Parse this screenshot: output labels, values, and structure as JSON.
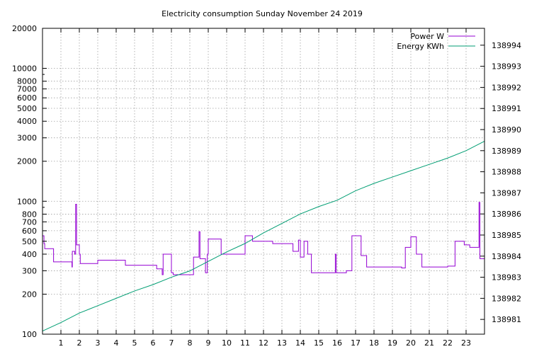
{
  "chart_data": {
    "type": "line",
    "title": "Electricity consumption Sunday November 24 2019",
    "x_ticks": [
      "1",
      "2",
      "3",
      "4",
      "5",
      "6",
      "7",
      "8",
      "9",
      "10",
      "11",
      "12",
      "13",
      "14",
      "15",
      "16",
      "17",
      "18",
      "19",
      "20",
      "21",
      "22",
      "23"
    ],
    "xlim": [
      0,
      24
    ],
    "y_left": {
      "scale": "log",
      "lim": [
        100,
        20000
      ],
      "ticks": [
        100,
        200,
        300,
        400,
        500,
        600,
        700,
        800,
        1000,
        2000,
        3000,
        4000,
        5000,
        6000,
        7000,
        8000,
        10000,
        20000
      ],
      "tick_labels": [
        "100",
        "200",
        "300",
        "400",
        "500",
        "600",
        "700",
        "800",
        "1000",
        "2000",
        "3000",
        "4000",
        "5000",
        "6000",
        "7000",
        "8000",
        "10000",
        "20000"
      ]
    },
    "y_right": {
      "scale": "linear",
      "lim": [
        138980.3,
        138994.8
      ],
      "ticks": [
        138981,
        138982,
        138983,
        138984,
        138985,
        138986,
        138987,
        138988,
        138989,
        138990,
        138991,
        138992,
        138993,
        138994
      ],
      "tick_labels": [
        "138981",
        "138982",
        "138983",
        "138984",
        "138985",
        "138986",
        "138987",
        "138988",
        "138989",
        "138990",
        "138991",
        "138992",
        "138993",
        "138994"
      ]
    },
    "legend_position": "top-right",
    "grid": true,
    "series": [
      {
        "name": "Power W",
        "color": "#9400d3",
        "axis": "left",
        "points": [
          [
            0.0,
            550
          ],
          [
            0.08,
            550
          ],
          [
            0.08,
            480
          ],
          [
            0.12,
            480
          ],
          [
            0.12,
            440
          ],
          [
            0.6,
            440
          ],
          [
            0.6,
            350
          ],
          [
            1.6,
            350
          ],
          [
            1.6,
            320
          ],
          [
            1.62,
            320
          ],
          [
            1.62,
            420
          ],
          [
            1.75,
            420
          ],
          [
            1.75,
            400
          ],
          [
            1.8,
            400
          ],
          [
            1.8,
            950
          ],
          [
            1.85,
            950
          ],
          [
            1.85,
            470
          ],
          [
            2.0,
            470
          ],
          [
            2.0,
            400
          ],
          [
            2.05,
            400
          ],
          [
            2.05,
            340
          ],
          [
            3.0,
            340
          ],
          [
            3.0,
            360
          ],
          [
            4.5,
            360
          ],
          [
            4.5,
            330
          ],
          [
            6.2,
            330
          ],
          [
            6.2,
            310
          ],
          [
            6.5,
            310
          ],
          [
            6.5,
            280
          ],
          [
            6.55,
            280
          ],
          [
            6.55,
            400
          ],
          [
            7.0,
            400
          ],
          [
            7.0,
            290
          ],
          [
            7.1,
            290
          ],
          [
            7.1,
            280
          ],
          [
            8.2,
            280
          ],
          [
            8.2,
            380
          ],
          [
            8.5,
            380
          ],
          [
            8.5,
            590
          ],
          [
            8.55,
            590
          ],
          [
            8.55,
            370
          ],
          [
            8.85,
            370
          ],
          [
            8.85,
            290
          ],
          [
            8.95,
            290
          ],
          [
            8.95,
            400
          ],
          [
            9.0,
            400
          ],
          [
            9.0,
            520
          ],
          [
            9.7,
            520
          ],
          [
            9.7,
            400
          ],
          [
            11.0,
            400
          ],
          [
            11.0,
            550
          ],
          [
            11.4,
            550
          ],
          [
            11.4,
            500
          ],
          [
            12.5,
            500
          ],
          [
            12.5,
            480
          ],
          [
            13.6,
            480
          ],
          [
            13.6,
            420
          ],
          [
            13.9,
            420
          ],
          [
            13.9,
            510
          ],
          [
            14.0,
            510
          ],
          [
            14.0,
            380
          ],
          [
            14.2,
            380
          ],
          [
            14.2,
            500
          ],
          [
            14.4,
            500
          ],
          [
            14.4,
            400
          ],
          [
            14.6,
            400
          ],
          [
            14.6,
            290
          ],
          [
            15.9,
            290
          ],
          [
            15.9,
            400
          ],
          [
            15.95,
            400
          ],
          [
            15.95,
            290
          ],
          [
            16.5,
            290
          ],
          [
            16.5,
            300
          ],
          [
            16.8,
            300
          ],
          [
            16.8,
            550
          ],
          [
            17.3,
            550
          ],
          [
            17.3,
            390
          ],
          [
            17.6,
            390
          ],
          [
            17.6,
            320
          ],
          [
            19.5,
            320
          ],
          [
            19.5,
            315
          ],
          [
            19.7,
            315
          ],
          [
            19.7,
            450
          ],
          [
            20.0,
            450
          ],
          [
            20.0,
            540
          ],
          [
            20.3,
            540
          ],
          [
            20.3,
            400
          ],
          [
            20.6,
            400
          ],
          [
            20.6,
            320
          ],
          [
            22.0,
            320
          ],
          [
            22.0,
            325
          ],
          [
            22.4,
            325
          ],
          [
            22.4,
            500
          ],
          [
            22.9,
            500
          ],
          [
            22.9,
            470
          ],
          [
            23.2,
            470
          ],
          [
            23.2,
            450
          ],
          [
            23.7,
            450
          ],
          [
            23.7,
            980
          ],
          [
            23.75,
            980
          ],
          [
            23.75,
            370
          ],
          [
            24.0,
            370
          ]
        ]
      },
      {
        "name": "Energy KWh",
        "color": "#009e73",
        "axis": "right",
        "points": [
          [
            0.0,
            138980.45
          ],
          [
            1.0,
            138980.85
          ],
          [
            2.0,
            138981.3
          ],
          [
            3.0,
            138981.65
          ],
          [
            4.0,
            138982.0
          ],
          [
            5.0,
            138982.35
          ],
          [
            6.0,
            138982.65
          ],
          [
            7.0,
            138983.0
          ],
          [
            8.0,
            138983.3
          ],
          [
            9.0,
            138983.75
          ],
          [
            10.0,
            138984.2
          ],
          [
            11.0,
            138984.6
          ],
          [
            12.0,
            138985.1
          ],
          [
            13.0,
            138985.55
          ],
          [
            14.0,
            138986.0
          ],
          [
            15.0,
            138986.35
          ],
          [
            16.0,
            138986.65
          ],
          [
            17.0,
            138987.1
          ],
          [
            18.0,
            138987.45
          ],
          [
            19.0,
            138987.75
          ],
          [
            20.0,
            138988.05
          ],
          [
            21.0,
            138988.35
          ],
          [
            22.0,
            138988.65
          ],
          [
            23.0,
            138989.0
          ],
          [
            24.0,
            138989.45
          ]
        ]
      }
    ]
  }
}
